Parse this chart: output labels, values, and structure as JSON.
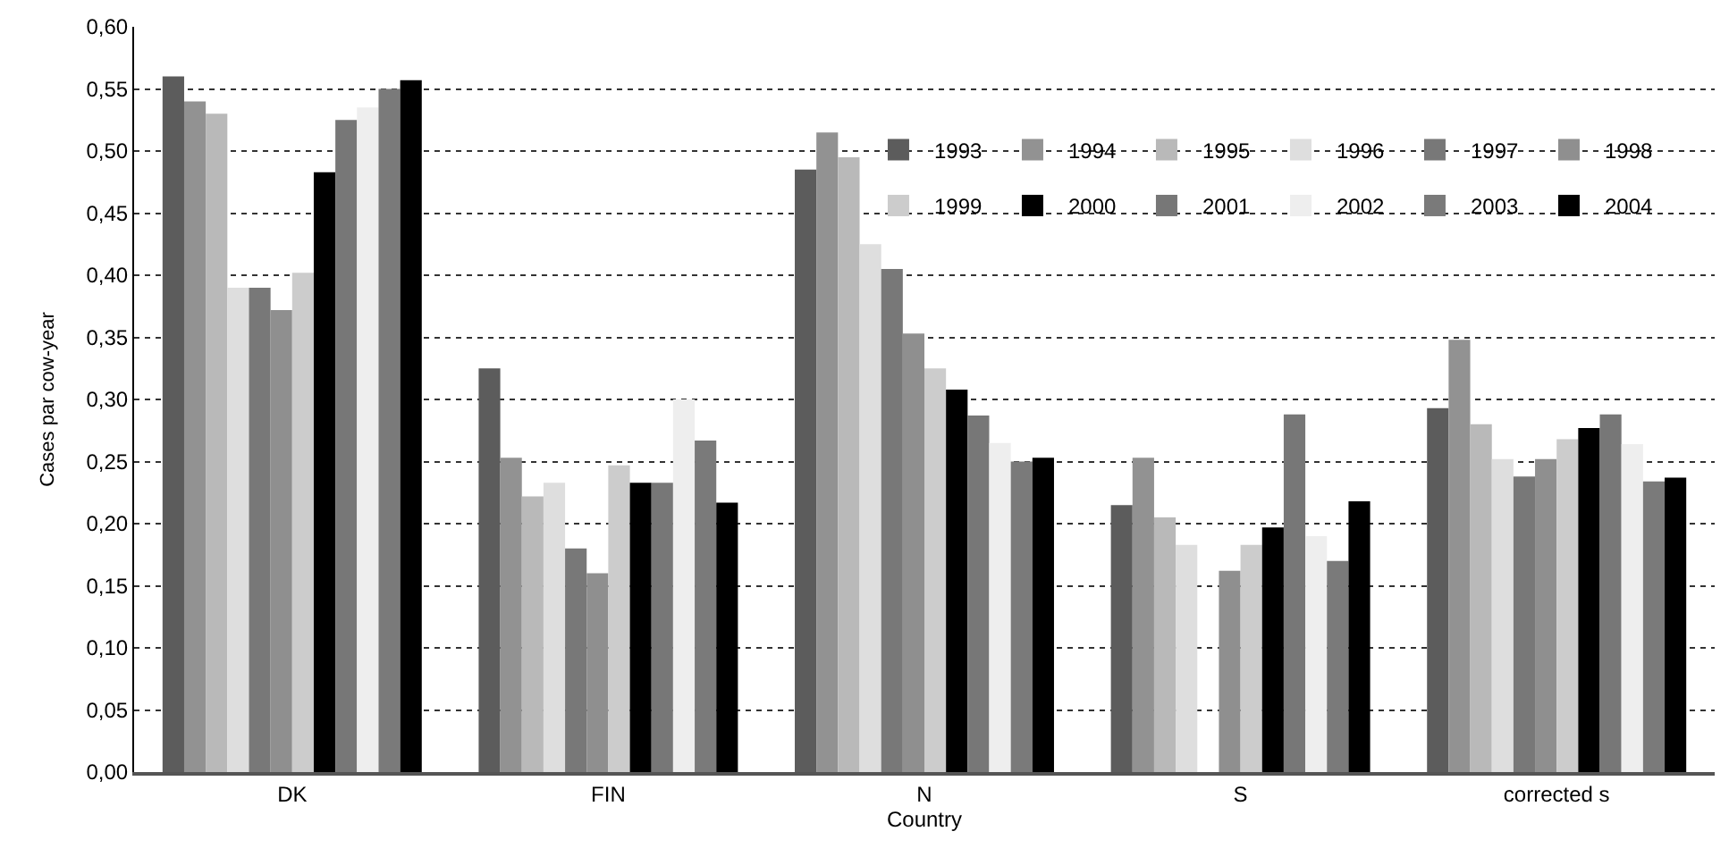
{
  "chart_data": {
    "type": "bar",
    "xlabel": "Country",
    "ylabel": "Cases par cow-year",
    "categories": [
      "DK",
      "FIN",
      "N",
      "S",
      "corrected s"
    ],
    "series": [
      {
        "name": "1993",
        "color": "#5c5c5c",
        "values": [
          0.56,
          0.325,
          0.485,
          0.215,
          0.293
        ]
      },
      {
        "name": "1994",
        "color": "#929292",
        "values": [
          0.54,
          0.253,
          0.515,
          0.253,
          0.348
        ]
      },
      {
        "name": "1995",
        "color": "#b9b9b9",
        "values": [
          0.53,
          0.222,
          0.495,
          0.205,
          0.28
        ]
      },
      {
        "name": "1996",
        "color": "#dedede",
        "values": [
          0.39,
          0.233,
          0.425,
          0.183,
          0.252
        ]
      },
      {
        "name": "1997",
        "color": "#787878",
        "values": [
          0.39,
          0.18,
          0.405,
          null,
          0.238
        ]
      },
      {
        "name": "1998",
        "color": "#8f8f8f",
        "values": [
          0.372,
          0.16,
          0.353,
          0.162,
          0.252
        ]
      },
      {
        "name": "1999",
        "color": "#cccccc",
        "values": [
          0.402,
          0.247,
          0.325,
          0.183,
          0.268
        ]
      },
      {
        "name": "2000",
        "color": "#000000",
        "values": [
          0.483,
          0.233,
          0.308,
          0.197,
          0.277
        ]
      },
      {
        "name": "2001",
        "color": "#777777",
        "values": [
          0.525,
          0.233,
          0.287,
          0.288,
          0.288
        ]
      },
      {
        "name": "2002",
        "color": "#eeeeee",
        "values": [
          0.535,
          0.3,
          0.265,
          0.19,
          0.264
        ]
      },
      {
        "name": "2003",
        "color": "#7a7a7a",
        "values": [
          0.55,
          0.267,
          0.25,
          0.17,
          0.234
        ]
      },
      {
        "name": "2004",
        "color": "#000000",
        "values": [
          0.557,
          0.217,
          0.253,
          0.218,
          0.237
        ]
      }
    ],
    "ylim": [
      0,
      0.6
    ],
    "yticks": [
      {
        "value": 0,
        "label": "0,00"
      },
      {
        "value": 0.05,
        "label": "0,05"
      },
      {
        "value": 0.1,
        "label": "0,10"
      },
      {
        "value": 0.15,
        "label": "0,15"
      },
      {
        "value": 0.2,
        "label": "0,20"
      },
      {
        "value": 0.25,
        "label": "0,25"
      },
      {
        "value": 0.3,
        "label": "0,30"
      },
      {
        "value": 0.35,
        "label": "0,35"
      },
      {
        "value": 0.4,
        "label": "0,40"
      },
      {
        "value": 0.45,
        "label": "0,45"
      },
      {
        "value": 0.5,
        "label": "0,50"
      },
      {
        "value": 0.55,
        "label": "0,55"
      },
      {
        "value": 0.6,
        "label": "0,60"
      }
    ],
    "grid": "y",
    "legend": "top right"
  }
}
